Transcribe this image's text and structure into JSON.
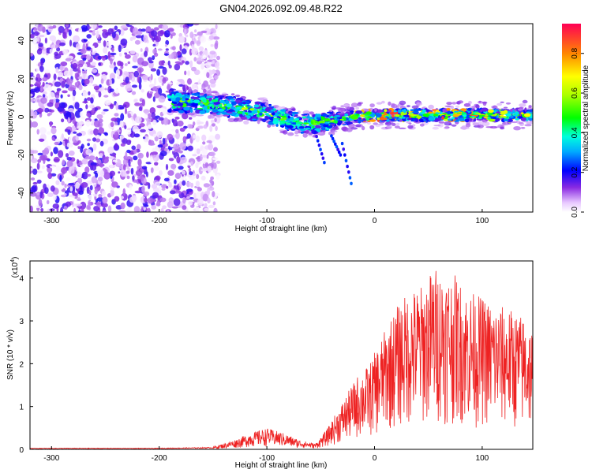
{
  "figure": {
    "title": "GN04.2026.092.09.48.R22"
  },
  "chart_data": [
    {
      "type": "heatmap",
      "xlabel": "Height of straight line (km)",
      "ylabel": "Frequency (Hz)",
      "xlim": [
        -320,
        147
      ],
      "ylim": [
        -50,
        49
      ],
      "xticks": [
        -300,
        -200,
        -100,
        0,
        100
      ],
      "xtick_labels": [
        "-300",
        "-200",
        "-100",
        "0",
        "100"
      ],
      "yticks": [
        -40,
        -20,
        0,
        20,
        40
      ],
      "ytick_labels": [
        "-40",
        "-20",
        "0",
        "20",
        "40"
      ],
      "colorbar": {
        "label": "Normalized spectral amplitude",
        "range": [
          0,
          0.95
        ],
        "ticks": [
          0.0,
          0.2,
          0.4,
          0.6,
          0.8
        ],
        "tick_labels": [
          "0.0",
          "0.2",
          "0.4",
          "0.6",
          "0.8"
        ]
      },
      "regions": [
        {
          "x_from": -320,
          "x_to": -160,
          "f_from": -50,
          "f_to": 49,
          "level": 0.15
        },
        {
          "x_from": -190,
          "x_to": 147,
          "f_center_start": 7,
          "f_center_end": 1,
          "level": 0.6
        }
      ],
      "ridge": [
        {
          "x": -190,
          "f": 8
        },
        {
          "x": -160,
          "f": 7
        },
        {
          "x": -130,
          "f": 5
        },
        {
          "x": -100,
          "f": 2
        },
        {
          "x": -80,
          "f": -2
        },
        {
          "x": -60,
          "f": -4
        },
        {
          "x": -40,
          "f": -2
        },
        {
          "x": -20,
          "f": 0
        },
        {
          "x": 0,
          "f": 1
        },
        {
          "x": 50,
          "f": 1
        },
        {
          "x": 100,
          "f": 1
        },
        {
          "x": 147,
          "f": 1
        }
      ]
    },
    {
      "type": "line",
      "xlabel": "Height of straight line (km)",
      "ylabel": "SNR (10 * v/v)",
      "scale_label": "(x10",
      "scale_exp": "4",
      "scale_close": ")",
      "xlim": [
        -320,
        147
      ],
      "ylim": [
        0,
        4.4
      ],
      "xticks": [
        -300,
        -200,
        -100,
        0,
        100
      ],
      "xtick_labels": [
        "-300",
        "-200",
        "-100",
        "0",
        "100"
      ],
      "yticks": [
        0,
        1,
        2,
        3,
        4
      ],
      "ytick_labels": [
        "0",
        "1",
        "2",
        "3",
        "4"
      ],
      "color": "#ee2222",
      "envelope": [
        {
          "x": -320,
          "y": 0.03
        },
        {
          "x": -200,
          "y": 0.03
        },
        {
          "x": -150,
          "y": 0.05
        },
        {
          "x": -130,
          "y": 0.2
        },
        {
          "x": -115,
          "y": 0.35
        },
        {
          "x": -100,
          "y": 0.45
        },
        {
          "x": -85,
          "y": 0.35
        },
        {
          "x": -70,
          "y": 0.2
        },
        {
          "x": -55,
          "y": 0.12
        },
        {
          "x": -45,
          "y": 0.4
        },
        {
          "x": -35,
          "y": 0.8
        },
        {
          "x": -25,
          "y": 1.2
        },
        {
          "x": -15,
          "y": 1.6
        },
        {
          "x": -5,
          "y": 1.8
        },
        {
          "x": 5,
          "y": 2.3
        },
        {
          "x": 15,
          "y": 2.8
        },
        {
          "x": 25,
          "y": 3.2
        },
        {
          "x": 35,
          "y": 3.4
        },
        {
          "x": 45,
          "y": 3.5
        },
        {
          "x": 55,
          "y": 3.9
        },
        {
          "x": 65,
          "y": 3.8
        },
        {
          "x": 75,
          "y": 3.7
        },
        {
          "x": 85,
          "y": 3.4
        },
        {
          "x": 95,
          "y": 3.3
        },
        {
          "x": 110,
          "y": 3.1
        },
        {
          "x": 125,
          "y": 3.0
        },
        {
          "x": 140,
          "y": 2.8
        },
        {
          "x": 147,
          "y": 2.6
        }
      ]
    }
  ]
}
